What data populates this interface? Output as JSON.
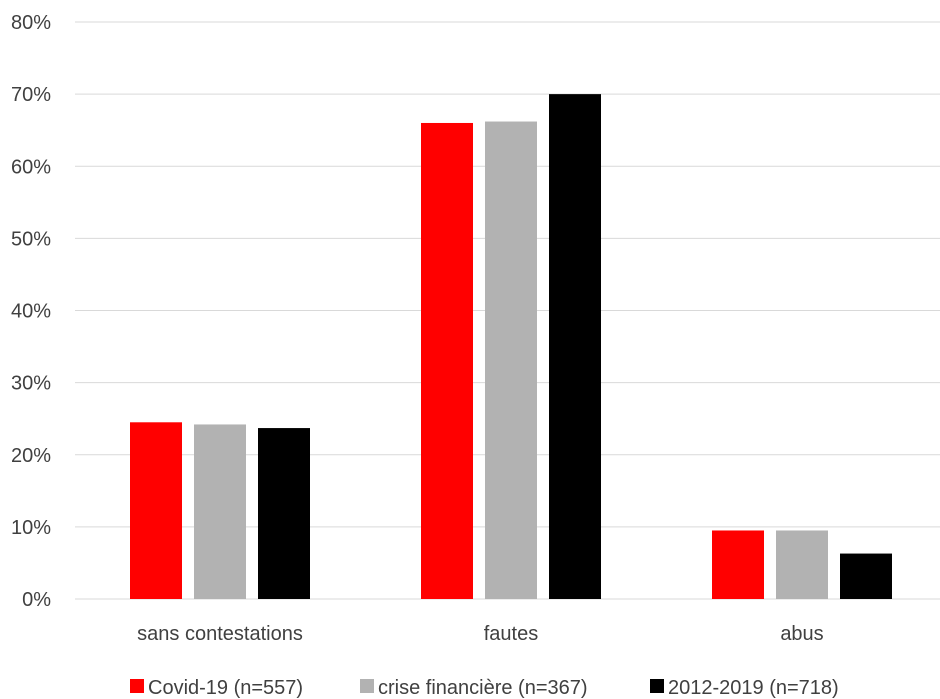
{
  "chart_data": {
    "type": "bar",
    "categories": [
      "sans contestations",
      "fautes",
      "abus"
    ],
    "series": [
      {
        "name": "Covid-19 (n=557)",
        "color": "#ff0000",
        "values": [
          24.5,
          66.0,
          9.5
        ]
      },
      {
        "name": "crise financière (n=367)",
        "color": "#b2b2b2",
        "values": [
          24.2,
          66.2,
          9.5
        ]
      },
      {
        "name": "2012-2019 (n=718)",
        "color": "#000000",
        "values": [
          23.7,
          70.0,
          6.3
        ]
      }
    ],
    "ylim": [
      0,
      80
    ],
    "yticks": [
      "0%",
      "10%",
      "20%",
      "30%",
      "40%",
      "50%",
      "60%",
      "70%",
      "80%"
    ],
    "ytick_values": [
      0,
      10,
      20,
      30,
      40,
      50,
      60,
      70,
      80
    ],
    "grid": true,
    "legend_position": "bottom"
  }
}
